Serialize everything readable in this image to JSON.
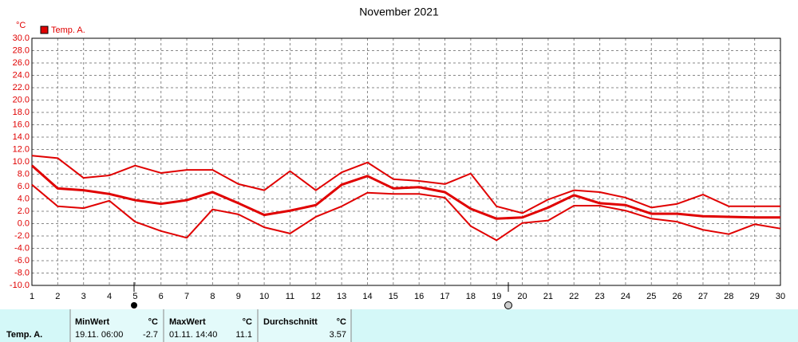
{
  "chart_data": {
    "type": "line",
    "title": "November 2021",
    "y_unit": "°C",
    "x": [
      1,
      2,
      3,
      4,
      5,
      6,
      7,
      8,
      9,
      10,
      11,
      12,
      13,
      14,
      15,
      16,
      17,
      18,
      19,
      20,
      21,
      22,
      23,
      24,
      25,
      26,
      27,
      28,
      29,
      30
    ],
    "xlim": [
      1,
      30
    ],
    "xticks": [
      1,
      2,
      3,
      4,
      5,
      6,
      7,
      8,
      9,
      10,
      11,
      12,
      13,
      14,
      15,
      16,
      17,
      18,
      19,
      20,
      21,
      22,
      23,
      24,
      25,
      26,
      27,
      28,
      29,
      30
    ],
    "ylim": [
      -10,
      30
    ],
    "yticks": [
      {
        "value": -10,
        "label": "-10.0"
      },
      {
        "value": -8,
        "label": "-8.0"
      },
      {
        "value": -6,
        "label": "-6.0"
      },
      {
        "value": -4,
        "label": "-4.0"
      },
      {
        "value": -2,
        "label": "-2.0"
      },
      {
        "value": 0,
        "label": "0.0"
      },
      {
        "value": 2,
        "label": "2.0"
      },
      {
        "value": 4,
        "label": "4.0"
      },
      {
        "value": 6,
        "label": "6.0"
      },
      {
        "value": 8,
        "label": "8.0"
      },
      {
        "value": 10,
        "label": "10.0"
      },
      {
        "value": 12,
        "label": "12.0"
      },
      {
        "value": 14,
        "label": "14.0"
      },
      {
        "value": 16,
        "label": "16.0"
      },
      {
        "value": 18,
        "label": "18.0"
      },
      {
        "value": 20,
        "label": "20.0"
      },
      {
        "value": 22,
        "label": "22.0"
      },
      {
        "value": 24,
        "label": "24.0"
      },
      {
        "value": 26,
        "label": "26.0"
      },
      {
        "value": 28,
        "label": "28.0"
      },
      {
        "value": 30,
        "label": "30.0"
      }
    ],
    "grid": true,
    "series": [
      {
        "name": "Temp. A.",
        "color": "#e00000",
        "line_width": 3,
        "values": [
          9.4,
          5.7,
          5.4,
          4.8,
          3.8,
          3.2,
          3.8,
          5.1,
          3.3,
          1.4,
          2.1,
          3.0,
          6.3,
          7.7,
          5.7,
          5.9,
          5.1,
          2.4,
          0.8,
          1.0,
          2.6,
          4.6,
          3.3,
          3.0,
          1.6,
          1.6,
          1.2,
          1.1,
          1.0,
          1.0
        ]
      },
      {
        "color": "#e00000",
        "line_width": 2,
        "values": [
          11.0,
          10.6,
          7.4,
          7.8,
          9.4,
          8.2,
          8.7,
          8.7,
          6.4,
          5.4,
          8.5,
          5.4,
          8.3,
          9.9,
          7.2,
          6.9,
          6.4,
          8.1,
          2.8,
          1.7,
          3.9,
          5.4,
          5.1,
          4.2,
          2.6,
          3.2,
          4.7,
          2.8,
          2.8,
          2.8
        ]
      },
      {
        "color": "#e00000",
        "line_width": 2,
        "values": [
          6.3,
          2.8,
          2.5,
          3.7,
          0.3,
          -1.2,
          -2.3,
          2.3,
          1.5,
          -0.6,
          -1.6,
          1.1,
          2.8,
          5.0,
          4.8,
          4.8,
          4.2,
          -0.4,
          -2.7,
          0.1,
          0.5,
          2.9,
          2.9,
          2.1,
          0.8,
          0.3,
          -1.0,
          -1.7,
          -0.1,
          -0.8
        ]
      }
    ]
  },
  "table": {
    "row_label": "Temp. A.",
    "columns": [
      {
        "header": "MinWert",
        "unit": "°C",
        "time": "19.11. 06:00",
        "value": -2.7
      },
      {
        "header": "MaxWert",
        "unit": "°C",
        "time": "01.11. 14:40",
        "value": 11.1
      },
      {
        "header": "Durchschnitt",
        "unit": "°C",
        "value": 3.57
      }
    ]
  }
}
